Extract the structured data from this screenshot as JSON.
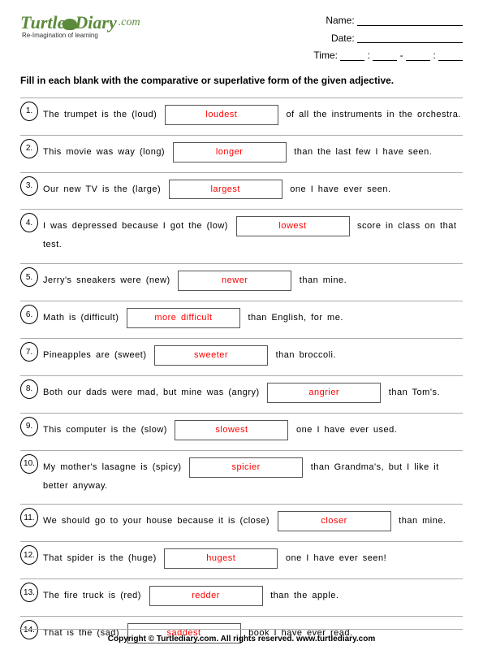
{
  "logo": {
    "text": "TurtleDiary",
    "com": ".com",
    "tagline": "Re-Imagination of learning"
  },
  "header": {
    "name_label": "Name:",
    "date_label": "Date:",
    "time_label": "Time:"
  },
  "instruction": "Fill in each blank with the comparative or superlative form of the given adjective.",
  "questions": [
    {
      "num": "1.",
      "before": "The trumpet is the (loud)",
      "answer": "loudest",
      "after": "of all the instruments in the orchestra."
    },
    {
      "num": "2.",
      "before": "This movie was way (long)",
      "answer": "longer",
      "after": "than the last few I have seen."
    },
    {
      "num": "3.",
      "before": "Our new TV is the (large)",
      "answer": "largest",
      "after": "one I have ever seen."
    },
    {
      "num": "4.",
      "before": "I was depressed because I got the (low)",
      "answer": "lowest",
      "after": "score in class on that test."
    },
    {
      "num": "5.",
      "before": "Jerry's sneakers were (new)",
      "answer": "newer",
      "after": "than mine."
    },
    {
      "num": "6.",
      "before": "Math is (difficult)",
      "answer": "more difficult",
      "after": "than English, for me."
    },
    {
      "num": "7.",
      "before": "Pineapples are (sweet)",
      "answer": "sweeter",
      "after": "than broccoli."
    },
    {
      "num": "8.",
      "before": "Both our dads were mad, but mine was (angry)",
      "answer": "angrier",
      "after": "than Tom's."
    },
    {
      "num": "9.",
      "before": "This computer is the (slow)",
      "answer": "slowest",
      "after": "one I have ever used."
    },
    {
      "num": "10.",
      "before": "My mother's lasagne is (spicy)",
      "answer": "spicier",
      "after": "than Grandma's, but I like it better anyway."
    },
    {
      "num": "11.",
      "before": "We should go to your house because it is (close)",
      "answer": "closer",
      "after": "than mine."
    },
    {
      "num": "12.",
      "before": "That spider is the (huge)",
      "answer": "hugest",
      "after": "one I have ever seen!"
    },
    {
      "num": "13.",
      "before": "The fire truck is (red)",
      "answer": "redder",
      "after": "than the apple."
    },
    {
      "num": "14.",
      "before": "That is the (sad)",
      "answer": "saddest",
      "after": "book I have ever read."
    }
  ],
  "footer": "Copyright © Turtlediary.com. All rights reserved. www.turtlediary.com"
}
